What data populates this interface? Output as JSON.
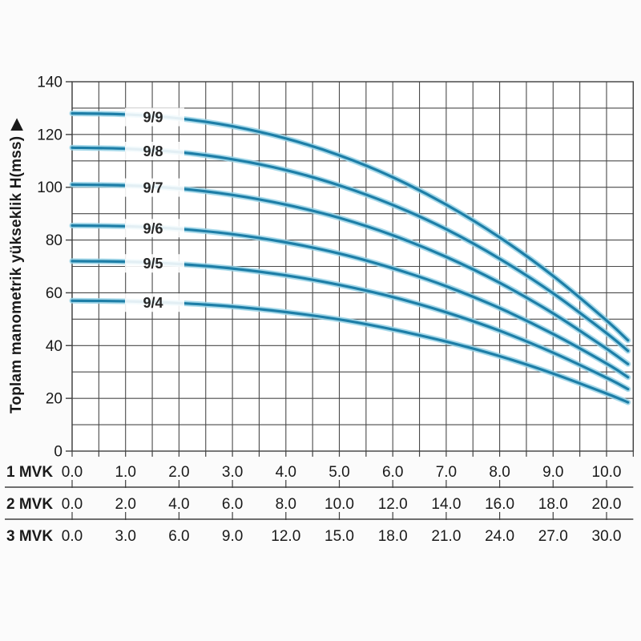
{
  "y_axis": {
    "title": "Toplam manometrik yükseklik H(mss)",
    "arrow": "▶",
    "tick_labels": [
      "0",
      "20",
      "40",
      "60",
      "80",
      "100",
      "120",
      "140"
    ],
    "tick_values": [
      0,
      20,
      40,
      60,
      80,
      100,
      120,
      140
    ]
  },
  "chart_data": {
    "type": "line",
    "title": "",
    "xlabel": "",
    "ylabel": "Toplam manometrik yükseklik H(mss)",
    "ylim": [
      0,
      140
    ],
    "xlim": [
      0,
      10.5
    ],
    "grid": "on",
    "x_grid_step": 0.5,
    "y_grid_step": 10,
    "legend_position": "inline-labels",
    "x_axis_rows": [
      {
        "label": "1 MVK",
        "tick_labels": [
          "0.0",
          "1.0",
          "2.0",
          "3.0",
          "4.0",
          "5.0",
          "6.0",
          "7.0",
          "8.0",
          "9.0",
          "10.0"
        ]
      },
      {
        "label": "2 MVK",
        "tick_labels": [
          "0.0",
          "2.0",
          "4.0",
          "6.0",
          "8.0",
          "10.0",
          "12.0",
          "14.0",
          "16.0",
          "18.0",
          "20.0"
        ]
      },
      {
        "label": "3 MVK",
        "tick_labels": [
          "0.0",
          "3.0",
          "6.0",
          "9.0",
          "12.0",
          "15.0",
          "18.0",
          "21.0",
          "24.0",
          "27.0",
          "30.0"
        ]
      }
    ],
    "series": [
      {
        "name": "9/9",
        "points": [
          [
            0,
            128
          ],
          [
            1,
            127.6
          ],
          [
            2,
            126.1
          ],
          [
            3,
            123.1
          ],
          [
            4,
            118.5
          ],
          [
            5,
            112.1
          ],
          [
            6,
            103.8
          ],
          [
            7,
            93.4
          ],
          [
            8,
            81.0
          ],
          [
            9,
            66.4
          ],
          [
            10,
            49.5
          ],
          [
            10.4,
            42.0
          ]
        ]
      },
      {
        "name": "9/8",
        "points": [
          [
            0,
            115
          ],
          [
            1,
            114.6
          ],
          [
            2,
            113.3
          ],
          [
            3,
            110.6
          ],
          [
            4,
            106.5
          ],
          [
            5,
            100.7
          ],
          [
            6,
            93.3
          ],
          [
            7,
            84.1
          ],
          [
            8,
            72.9
          ],
          [
            9,
            59.8
          ],
          [
            10,
            44.7
          ],
          [
            10.4,
            38.0
          ]
        ]
      },
      {
        "name": "9/7",
        "points": [
          [
            0,
            101
          ],
          [
            1,
            100.7
          ],
          [
            2,
            99.5
          ],
          [
            3,
            97.1
          ],
          [
            4,
            93.4
          ],
          [
            5,
            88.4
          ],
          [
            6,
            81.8
          ],
          [
            7,
            73.6
          ],
          [
            8,
            63.8
          ],
          [
            9,
            52.2
          ],
          [
            10,
            38.8
          ],
          [
            10.4,
            33.0
          ]
        ]
      },
      {
        "name": "9/6",
        "points": [
          [
            0,
            85.5
          ],
          [
            1,
            85.2
          ],
          [
            2,
            84.2
          ],
          [
            3,
            82.2
          ],
          [
            4,
            79.1
          ],
          [
            5,
            74.9
          ],
          [
            6,
            69.3
          ],
          [
            7,
            62.5
          ],
          [
            8,
            54.2
          ],
          [
            9,
            44.4
          ],
          [
            10,
            33.2
          ],
          [
            10.4,
            28.0
          ]
        ]
      },
      {
        "name": "9/5",
        "points": [
          [
            0,
            72
          ],
          [
            1,
            71.8
          ],
          [
            2,
            70.9
          ],
          [
            3,
            69.2
          ],
          [
            4,
            66.6
          ],
          [
            5,
            63.0
          ],
          [
            6,
            58.4
          ],
          [
            7,
            52.6
          ],
          [
            8,
            45.6
          ],
          [
            9,
            37.3
          ],
          [
            10,
            27.8
          ],
          [
            10.4,
            23.5
          ]
        ]
      },
      {
        "name": "9/4",
        "points": [
          [
            0,
            57
          ],
          [
            1,
            56.8
          ],
          [
            2,
            56.1
          ],
          [
            3,
            54.8
          ],
          [
            4,
            52.7
          ],
          [
            5,
            49.9
          ],
          [
            6,
            46.1
          ],
          [
            7,
            41.5
          ],
          [
            8,
            36.0
          ],
          [
            9,
            29.4
          ],
          [
            10,
            21.8
          ],
          [
            10.4,
            18.5
          ]
        ]
      }
    ]
  },
  "colors": {
    "curve_core": "#1d7ea7",
    "curve_glow": "#96d2e6",
    "grid": "#4a4a4a",
    "axis": "#3f3f3f",
    "text": "#1a1a1a",
    "background": "#fbfbfb",
    "plot_background": "#ffffff"
  }
}
